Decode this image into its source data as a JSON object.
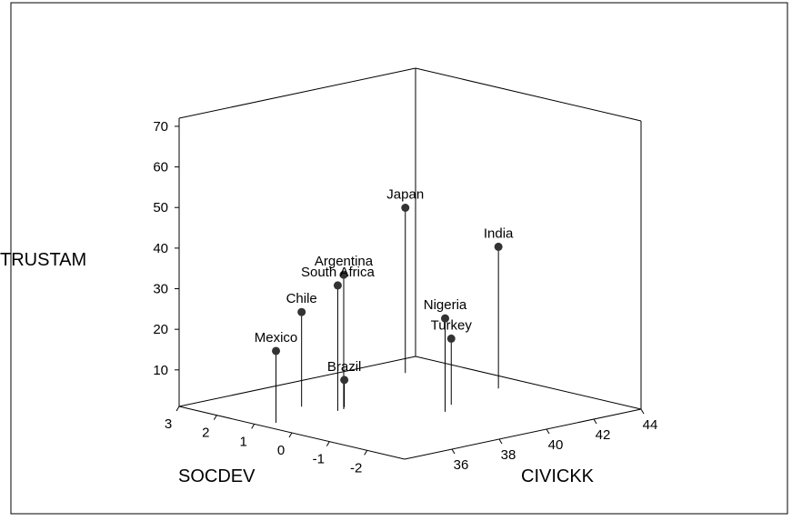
{
  "chart_data": {
    "type": "scatter3d",
    "xlabel": "SOCDEV",
    "ylabel": "CIVICKK",
    "zlabel": "TRUSTAM",
    "categories": [
      "Mexico",
      "Chile",
      "Argentina",
      "South Africa",
      "Brazil",
      "Japan",
      "India",
      "Nigeria",
      "Turkey"
    ],
    "x": [
      0.8,
      1.44,
      0.76,
      0.73,
      0.87,
      2.14,
      0.04,
      -0.68,
      -0.34
    ],
    "y": [
      34.6,
      36.7,
      37.4,
      37.1,
      37.6,
      42.2,
      42.8,
      39.4,
      40.2
    ],
    "z": [
      18.7,
      24.3,
      34.1,
      31.9,
      7.7,
      41.7,
      35.9,
      24.0,
      17.3
    ],
    "xlim": [
      -3,
      3
    ],
    "ylim": [
      34,
      44
    ],
    "zlim": [
      1,
      72
    ],
    "xticks": [
      3,
      2,
      1,
      0,
      -1,
      -2
    ],
    "yticks": [
      36,
      38,
      40,
      42,
      44
    ],
    "zticks": [
      10,
      20,
      30,
      40,
      50,
      60,
      70
    ],
    "color": "#333333"
  }
}
